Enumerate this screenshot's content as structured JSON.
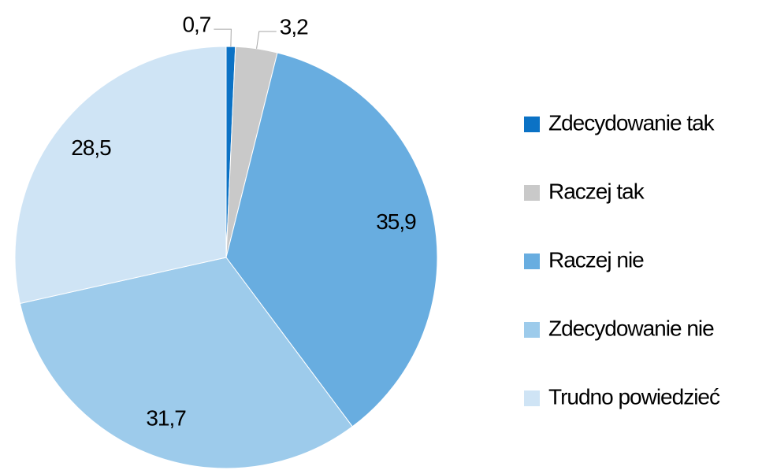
{
  "chart_data": {
    "type": "pie",
    "categories": [
      "Zdecydowanie tak",
      "Raczej tak",
      "Raczej nie",
      "Zdecydowanie nie",
      "Trudno powiedzieć"
    ],
    "values": [
      0.7,
      3.2,
      35.9,
      31.7,
      28.5
    ],
    "value_labels": [
      "0,7",
      "3,2",
      "35,9",
      "31,7",
      "28,5"
    ],
    "colors": [
      "#0b72c5",
      "#c9c9c9",
      "#68ade0",
      "#9dcbeb",
      "#cfe4f5"
    ],
    "legend": "right"
  }
}
